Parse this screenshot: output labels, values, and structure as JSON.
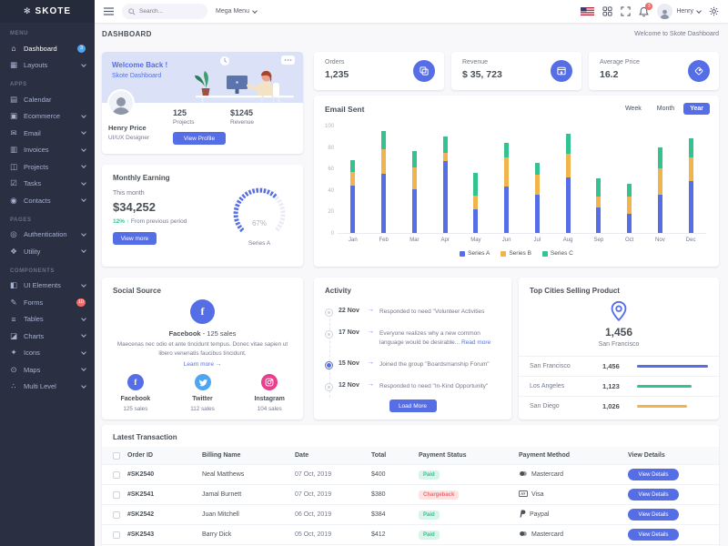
{
  "app": {
    "name": "SKOTE"
  },
  "colors": {
    "primary": "#556ee6",
    "success": "#34c38f",
    "warning": "#f1b44c",
    "danger": "#f46a6a",
    "info": "#50a5f1",
    "pink": "#e83e8c",
    "sidebar": "#2a3042",
    "body_bg": "#f8f8fb"
  },
  "topbar": {
    "search_placeholder": "Search...",
    "mega_menu": "Mega Menu",
    "user_name": "Henry",
    "notification_count": "3"
  },
  "sidebar": {
    "sections": [
      {
        "header": "MENU",
        "items": [
          {
            "label": "Dashboard",
            "icon": "home-icon",
            "glyph": "⌂",
            "badge": "3",
            "badge_color": "#50a5f1",
            "active": true
          },
          {
            "label": "Layouts",
            "icon": "layout-icon",
            "glyph": "▦",
            "chevron": true
          }
        ]
      },
      {
        "header": "APPS",
        "items": [
          {
            "label": "Calendar",
            "icon": "calendar-icon",
            "glyph": "▤"
          },
          {
            "label": "Ecommerce",
            "icon": "store-icon",
            "glyph": "▣",
            "chevron": true
          },
          {
            "label": "Email",
            "icon": "envelope-icon",
            "glyph": "✉",
            "chevron": true
          },
          {
            "label": "Invoices",
            "icon": "receipt-icon",
            "glyph": "▥",
            "chevron": true
          },
          {
            "label": "Projects",
            "icon": "briefcase-icon",
            "glyph": "◫",
            "chevron": true
          },
          {
            "label": "Tasks",
            "icon": "task-icon",
            "glyph": "☑",
            "chevron": true
          },
          {
            "label": "Contacts",
            "icon": "user-icon",
            "glyph": "◉",
            "chevron": true
          }
        ]
      },
      {
        "header": "PAGES",
        "items": [
          {
            "label": "Authentication",
            "icon": "lock-icon",
            "glyph": "◎",
            "chevron": true
          },
          {
            "label": "Utility",
            "icon": "file-icon",
            "glyph": "❖",
            "chevron": true
          }
        ]
      },
      {
        "header": "COMPONENTS",
        "items": [
          {
            "label": "UI Elements",
            "icon": "tone-icon",
            "glyph": "◧",
            "chevron": true
          },
          {
            "label": "Forms",
            "icon": "pencil-icon",
            "glyph": "✎",
            "badge": "10",
            "badge_color": "#f46a6a"
          },
          {
            "label": "Tables",
            "icon": "table-icon",
            "glyph": "≡",
            "chevron": true
          },
          {
            "label": "Charts",
            "icon": "chart-icon",
            "glyph": "◪",
            "chevron": true
          },
          {
            "label": "Icons",
            "icon": "spark-icon",
            "glyph": "✦",
            "chevron": true
          },
          {
            "label": "Maps",
            "icon": "map-pin-icon",
            "glyph": "⊙",
            "chevron": true
          },
          {
            "label": "Multi Level",
            "icon": "share-icon",
            "glyph": "∴",
            "chevron": true
          }
        ]
      }
    ]
  },
  "page": {
    "title": "DASHBOARD",
    "welcome_text": "Welcome to Skote Dashboard"
  },
  "profile_card": {
    "welcome": "Welcome Back !",
    "subtitle": "Skote Dashboard",
    "name": "Henry Price",
    "role": "UI/UX Designer",
    "projects_value": "125",
    "projects_label": "Projects",
    "revenue_value": "$1245",
    "revenue_label": "Revenue",
    "button": "View Profile"
  },
  "monthly": {
    "title": "Monthly Earning",
    "period_label": "This month",
    "amount": "$34,252",
    "delta": "12%",
    "delta_arrow": "↑",
    "delta_note": "From previous period",
    "button": "View more",
    "gauge_value": "67%",
    "gauge_label": "Series A"
  },
  "stats": [
    {
      "label": "Orders",
      "value": "1,235",
      "icon": "copy-icon"
    },
    {
      "label": "Revenue",
      "value": "$ 35, 723",
      "icon": "archive-in-icon"
    },
    {
      "label": "Average Price",
      "value": "16.2",
      "icon": "purchase-tag-icon"
    }
  ],
  "email_sent": {
    "title": "Email Sent",
    "tabs": [
      "Week",
      "Month",
      "Year"
    ],
    "active_tab": "Year"
  },
  "chart_data": [
    {
      "type": "bar",
      "stacked": true,
      "title": "Email Sent",
      "categories": [
        "Jan",
        "Feb",
        "Mar",
        "Apr",
        "May",
        "Jun",
        "Jul",
        "Aug",
        "Sep",
        "Oct",
        "Nov",
        "Dec"
      ],
      "series": [
        {
          "name": "Series A",
          "color": "#556ee6",
          "values": [
            44,
            55,
            41,
            67,
            22,
            43,
            36,
            52,
            24,
            18,
            36,
            48
          ]
        },
        {
          "name": "Series B",
          "color": "#f1b44c",
          "values": [
            13,
            23,
            20,
            8,
            13,
            27,
            18,
            22,
            10,
            16,
            24,
            22
          ]
        },
        {
          "name": "Series C",
          "color": "#34c38f",
          "values": [
            11,
            17,
            15,
            15,
            21,
            14,
            11,
            18,
            17,
            12,
            20,
            18
          ]
        }
      ],
      "ylim": [
        0,
        100
      ],
      "yticks": [
        0,
        20,
        40,
        60,
        80,
        100
      ],
      "grid": false,
      "legend_position": "bottom"
    },
    {
      "type": "radial",
      "title": "Monthly Earning",
      "value": 67,
      "label": "Series A",
      "color": "#556ee6"
    },
    {
      "type": "bar",
      "title": "Top Cities Selling Product",
      "categories": [
        "San Francisco",
        "Los Angeles",
        "San Diego"
      ],
      "values": [
        1456,
        1123,
        1026
      ],
      "colors": [
        "#556ee6",
        "#34c38f",
        "#f1b44c"
      ]
    }
  ],
  "social": {
    "title": "Social Source",
    "highlight_name": "Facebook",
    "highlight_rest": " - 125 sales",
    "description": "Maecenas nec odio et ante tincidunt tempus. Donec vitae sapien ut libero venenatis faucibus tincidunt.",
    "learn_more": "Learn more",
    "learn_arrow": "→",
    "items": [
      {
        "name": "Facebook",
        "sales": "125 sales",
        "color": "#556ee6",
        "icon": "facebook-icon"
      },
      {
        "name": "Twitter",
        "sales": "112 sales",
        "color": "#50a5f1",
        "icon": "twitter-icon"
      },
      {
        "name": "Instagram",
        "sales": "104 sales",
        "color": "#e83e8c",
        "icon": "instagram-icon"
      }
    ]
  },
  "activity": {
    "title": "Activity",
    "button": "Load More",
    "arrow": "→",
    "items": [
      {
        "date": "22 Nov",
        "text": "Responded to need \"Volunteer Activities"
      },
      {
        "date": "17 Nov",
        "text": "Everyone realizes why a new common language would be desirable...",
        "link": "Read more"
      },
      {
        "date": "15 Nov",
        "text": "Joined the group \"Boardsmanship Forum\"",
        "active": true
      },
      {
        "date": "12 Nov",
        "text": "Responded to need \"In-Kind Opportunity\""
      }
    ]
  },
  "top_cities": {
    "title": "Top Cities Selling Product",
    "total": "1,456",
    "total_city": "San Francisco",
    "rows": [
      {
        "city": "San Francisco",
        "value": "1,456",
        "pct": 100,
        "color": "#556ee6"
      },
      {
        "city": "Los Angeles",
        "value": "1,123",
        "pct": 77,
        "color": "#34c38f"
      },
      {
        "city": "San Diego",
        "value": "1,026",
        "pct": 70,
        "color": "#f1b44c"
      }
    ]
  },
  "transactions": {
    "title": "Latest Transaction",
    "headers": [
      "Order ID",
      "Billing Name",
      "Date",
      "Total",
      "Payment Status",
      "Payment Method",
      "View Details"
    ],
    "view_button": "View Details",
    "rows": [
      {
        "id": "#SK2540",
        "name": "Neal Matthews",
        "date": "07 Oct, 2019",
        "total": "$400",
        "status": "Paid",
        "method": "Mastercard"
      },
      {
        "id": "#SK2541",
        "name": "Jamal Burnett",
        "date": "07 Oct, 2019",
        "total": "$380",
        "status": "Chargeback",
        "method": "Visa"
      },
      {
        "id": "#SK2542",
        "name": "Juan Mitchell",
        "date": "06 Oct, 2019",
        "total": "$384",
        "status": "Paid",
        "method": "Paypal"
      },
      {
        "id": "#SK2543",
        "name": "Barry Dick",
        "date": "05 Oct, 2019",
        "total": "$412",
        "status": "Paid",
        "method": "Mastercard"
      }
    ]
  }
}
